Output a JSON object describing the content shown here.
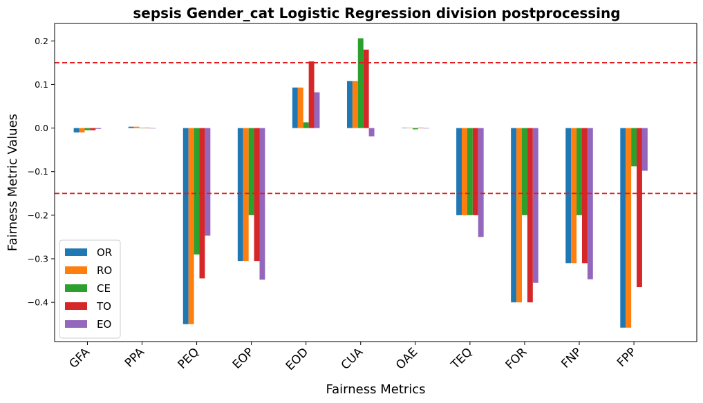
{
  "chart_data": {
    "type": "bar",
    "title": "sepsis Gender_cat Logistic Regression division postprocessing",
    "xlabel": "Fairness Metrics",
    "ylabel": "Fairness Metric Values",
    "categories": [
      "GFA",
      "PPA",
      "PEQ",
      "EOP",
      "EOD",
      "CUA",
      "OAE",
      "TEQ",
      "FOR",
      "FNP",
      "FPP"
    ],
    "ylim": [
      -0.49,
      0.24
    ],
    "yticks": [
      -0.4,
      -0.3,
      -0.2,
      -0.1,
      0.0,
      0.1,
      0.2
    ],
    "ytick_labels": [
      "−0.4",
      "−0.3",
      "−0.2",
      "−0.1",
      "0.0",
      "0.1",
      "0.2"
    ],
    "threshold_lines": [
      0.15,
      -0.15
    ],
    "threshold_color": "#e41a1c",
    "legend_position": "lower-left",
    "grid": false,
    "series": [
      {
        "name": "OR",
        "color": "#1f77b4",
        "values": [
          -0.01,
          0.003,
          -0.45,
          -0.305,
          0.093,
          0.108,
          0.001,
          -0.2,
          -0.4,
          -0.31,
          -0.458
        ]
      },
      {
        "name": "RO",
        "color": "#ff7f0e",
        "values": [
          -0.01,
          0.003,
          -0.45,
          -0.305,
          0.093,
          0.108,
          0.001,
          -0.2,
          -0.4,
          -0.31,
          -0.458
        ]
      },
      {
        "name": "CE",
        "color": "#2ca02c",
        "values": [
          -0.005,
          0.001,
          -0.29,
          -0.2,
          0.013,
          0.206,
          -0.003,
          -0.2,
          -0.2,
          -0.2,
          -0.088
        ]
      },
      {
        "name": "TO",
        "color": "#d62728",
        "values": [
          -0.005,
          0.001,
          -0.345,
          -0.305,
          0.153,
          0.18,
          0.001,
          -0.2,
          -0.4,
          -0.31,
          -0.365
        ]
      },
      {
        "name": "EO",
        "color": "#9467bd",
        "values": [
          -0.002,
          -0.001,
          -0.247,
          -0.348,
          0.082,
          -0.019,
          -0.001,
          -0.25,
          -0.355,
          -0.347,
          -0.098
        ]
      }
    ]
  }
}
